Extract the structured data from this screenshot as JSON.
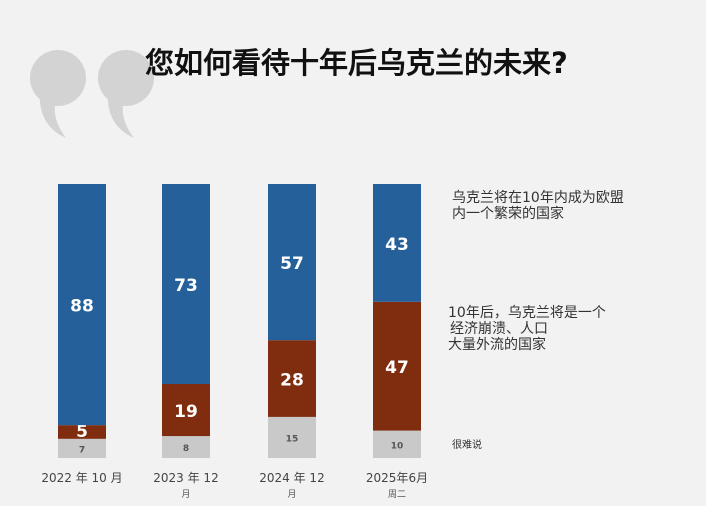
{
  "title": "您如何看待十年后乌克兰的未来?",
  "colors": {
    "blue": "#25609a",
    "brown": "#7f2c0f",
    "gray": "#c9c9c9",
    "quote": "#d3d3d3"
  },
  "legend": {
    "blue": [
      "乌克兰将在10年内成为欧盟",
      "内一个繁荣的国家"
    ],
    "brown": [
      "10年后，乌克兰将是一个",
      "经济崩溃、人口",
      "大量外流的国家"
    ],
    "gray": [
      "很难说"
    ]
  },
  "chart_data": {
    "type": "bar",
    "stacked": true,
    "title": "您如何看待十年后乌克兰的未来?",
    "categories": [
      "2022 年 10 月",
      "2023 年 12 月",
      "2024 年 12 月",
      "2025年6月 周二"
    ],
    "x_labels": [
      {
        "main": "2022 年 10 月",
        "sub": ""
      },
      {
        "main": "2023 年 12",
        "sub": "月"
      },
      {
        "main": "2024 年 12",
        "sub": "月"
      },
      {
        "main": "2025年6月",
        "sub": "周二"
      }
    ],
    "series": [
      {
        "name": "很难说",
        "values": [
          7,
          8,
          15,
          10
        ]
      },
      {
        "name": "10年后，乌克兰将是一个经济崩溃、人口大量外流的国家",
        "values": [
          5,
          19,
          28,
          47
        ]
      },
      {
        "name": "乌克兰将在10年内成为欧盟内一个繁荣的国家",
        "values": [
          88,
          73,
          57,
          43
        ]
      }
    ],
    "ylim": [
      0,
      100
    ]
  }
}
